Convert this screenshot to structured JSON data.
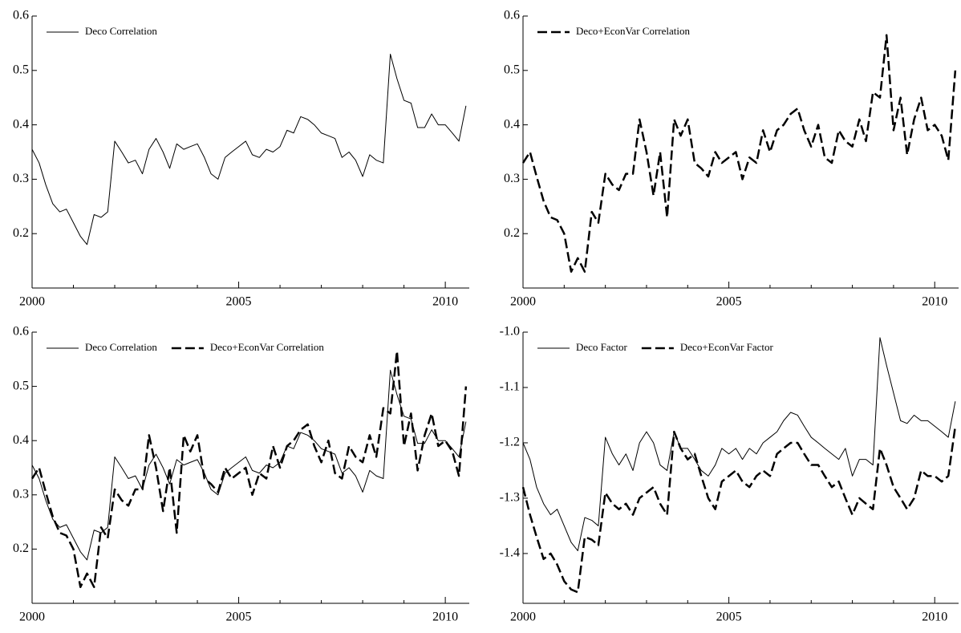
{
  "chart_data": [
    {
      "type": "line",
      "legend": "upper left",
      "xlim": [
        2000,
        2010.58
      ],
      "ylim": [
        0.1,
        0.6
      ],
      "xticks": [
        2000,
        2005,
        2010
      ],
      "xminorticks": [
        2001,
        2002,
        2003,
        2004,
        2006,
        2007,
        2008,
        2009
      ],
      "yticks": [
        0.2,
        0.3,
        0.4,
        0.5,
        0.6
      ],
      "x": [
        2000,
        2000.17,
        2000.33,
        2000.5,
        2000.67,
        2000.83,
        2001,
        2001.17,
        2001.33,
        2001.5,
        2001.67,
        2001.83,
        2002,
        2002.17,
        2002.33,
        2002.5,
        2002.67,
        2002.83,
        2003,
        2003.17,
        2003.33,
        2003.5,
        2003.67,
        2003.83,
        2004,
        2004.17,
        2004.33,
        2004.5,
        2004.67,
        2004.83,
        2005,
        2005.17,
        2005.33,
        2005.5,
        2005.67,
        2005.83,
        2006,
        2006.17,
        2006.33,
        2006.5,
        2006.67,
        2006.83,
        2007,
        2007.17,
        2007.33,
        2007.5,
        2007.67,
        2007.83,
        2008,
        2008.17,
        2008.33,
        2008.5,
        2008.67,
        2008.83,
        2009,
        2009.17,
        2009.33,
        2009.5,
        2009.67,
        2009.83,
        2010,
        2010.17,
        2010.33,
        2010.5
      ],
      "series": [
        {
          "name": "Deco Correlation",
          "color": "#000000",
          "dashed": false,
          "values": [
            0.355,
            0.33,
            0.29,
            0.255,
            0.24,
            0.245,
            0.22,
            0.195,
            0.18,
            0.235,
            0.23,
            0.24,
            0.37,
            0.35,
            0.33,
            0.335,
            0.31,
            0.355,
            0.375,
            0.35,
            0.32,
            0.365,
            0.355,
            0.36,
            0.365,
            0.34,
            0.31,
            0.3,
            0.34,
            0.35,
            0.36,
            0.37,
            0.345,
            0.34,
            0.355,
            0.35,
            0.36,
            0.39,
            0.385,
            0.415,
            0.41,
            0.4,
            0.385,
            0.38,
            0.375,
            0.34,
            0.35,
            0.335,
            0.305,
            0.345,
            0.335,
            0.33,
            0.53,
            0.485,
            0.445,
            0.44,
            0.395,
            0.395,
            0.42,
            0.4,
            0.4,
            0.385,
            0.37,
            0.435
          ]
        }
      ]
    },
    {
      "type": "line",
      "legend": "upper left",
      "xlim": [
        2000,
        2010.58
      ],
      "ylim": [
        0.1,
        0.6
      ],
      "xticks": [
        2000,
        2005,
        2010
      ],
      "xminorticks": [
        2001,
        2002,
        2003,
        2004,
        2006,
        2007,
        2008,
        2009
      ],
      "yticks": [
        0.2,
        0.3,
        0.4,
        0.5,
        0.6
      ],
      "x": [
        2000,
        2000.17,
        2000.33,
        2000.5,
        2000.67,
        2000.83,
        2001,
        2001.17,
        2001.33,
        2001.5,
        2001.67,
        2001.83,
        2002,
        2002.17,
        2002.33,
        2002.5,
        2002.67,
        2002.83,
        2003,
        2003.17,
        2003.33,
        2003.5,
        2003.67,
        2003.83,
        2004,
        2004.17,
        2004.33,
        2004.5,
        2004.67,
        2004.83,
        2005,
        2005.17,
        2005.33,
        2005.5,
        2005.67,
        2005.83,
        2006,
        2006.17,
        2006.33,
        2006.5,
        2006.67,
        2006.83,
        2007,
        2007.17,
        2007.33,
        2007.5,
        2007.67,
        2007.83,
        2008,
        2008.17,
        2008.33,
        2008.5,
        2008.67,
        2008.83,
        2009,
        2009.17,
        2009.33,
        2009.5,
        2009.67,
        2009.83,
        2010,
        2010.17,
        2010.33,
        2010.5
      ],
      "series": [
        {
          "name": "Deco+EconVar Correlation",
          "color": "#000000",
          "dashed": true,
          "values": [
            0.33,
            0.35,
            0.305,
            0.26,
            0.23,
            0.225,
            0.2,
            0.13,
            0.155,
            0.13,
            0.24,
            0.22,
            0.31,
            0.29,
            0.28,
            0.31,
            0.31,
            0.41,
            0.35,
            0.27,
            0.35,
            0.23,
            0.41,
            0.38,
            0.41,
            0.33,
            0.32,
            0.305,
            0.35,
            0.33,
            0.34,
            0.35,
            0.3,
            0.34,
            0.33,
            0.39,
            0.35,
            0.39,
            0.4,
            0.42,
            0.43,
            0.39,
            0.36,
            0.4,
            0.34,
            0.33,
            0.39,
            0.37,
            0.36,
            0.41,
            0.37,
            0.46,
            0.45,
            0.565,
            0.39,
            0.45,
            0.345,
            0.41,
            0.45,
            0.39,
            0.4,
            0.38,
            0.335,
            0.5
          ]
        }
      ]
    },
    {
      "type": "line",
      "legend": "upper left",
      "xlim": [
        2000,
        2010.58
      ],
      "ylim": [
        0.1,
        0.6
      ],
      "xticks": [
        2000,
        2005,
        2010
      ],
      "xminorticks": [
        2001,
        2002,
        2003,
        2004,
        2006,
        2007,
        2008,
        2009
      ],
      "yticks": [
        0.2,
        0.3,
        0.4,
        0.5,
        0.6
      ],
      "x": [
        2000,
        2000.17,
        2000.33,
        2000.5,
        2000.67,
        2000.83,
        2001,
        2001.17,
        2001.33,
        2001.5,
        2001.67,
        2001.83,
        2002,
        2002.17,
        2002.33,
        2002.5,
        2002.67,
        2002.83,
        2003,
        2003.17,
        2003.33,
        2003.5,
        2003.67,
        2003.83,
        2004,
        2004.17,
        2004.33,
        2004.5,
        2004.67,
        2004.83,
        2005,
        2005.17,
        2005.33,
        2005.5,
        2005.67,
        2005.83,
        2006,
        2006.17,
        2006.33,
        2006.5,
        2006.67,
        2006.83,
        2007,
        2007.17,
        2007.33,
        2007.5,
        2007.67,
        2007.83,
        2008,
        2008.17,
        2008.33,
        2008.5,
        2008.67,
        2008.83,
        2009,
        2009.17,
        2009.33,
        2009.5,
        2009.67,
        2009.83,
        2010,
        2010.17,
        2010.33,
        2010.5
      ],
      "series": [
        {
          "name": "Deco Correlation",
          "color": "#000000",
          "dashed": false,
          "values": [
            0.355,
            0.33,
            0.29,
            0.255,
            0.24,
            0.245,
            0.22,
            0.195,
            0.18,
            0.235,
            0.23,
            0.24,
            0.37,
            0.35,
            0.33,
            0.335,
            0.31,
            0.355,
            0.375,
            0.35,
            0.32,
            0.365,
            0.355,
            0.36,
            0.365,
            0.34,
            0.31,
            0.3,
            0.34,
            0.35,
            0.36,
            0.37,
            0.345,
            0.34,
            0.355,
            0.35,
            0.36,
            0.39,
            0.385,
            0.415,
            0.41,
            0.4,
            0.385,
            0.38,
            0.375,
            0.34,
            0.35,
            0.335,
            0.305,
            0.345,
            0.335,
            0.33,
            0.53,
            0.485,
            0.445,
            0.44,
            0.395,
            0.395,
            0.42,
            0.4,
            0.4,
            0.385,
            0.37,
            0.435
          ]
        },
        {
          "name": "Deco+EconVar Correlation",
          "color": "#000000",
          "dashed": true,
          "values": [
            0.33,
            0.35,
            0.305,
            0.26,
            0.23,
            0.225,
            0.2,
            0.13,
            0.155,
            0.13,
            0.24,
            0.22,
            0.31,
            0.29,
            0.28,
            0.31,
            0.31,
            0.41,
            0.35,
            0.27,
            0.35,
            0.23,
            0.41,
            0.38,
            0.41,
            0.33,
            0.32,
            0.305,
            0.35,
            0.33,
            0.34,
            0.35,
            0.3,
            0.34,
            0.33,
            0.39,
            0.35,
            0.39,
            0.4,
            0.42,
            0.43,
            0.39,
            0.36,
            0.4,
            0.34,
            0.33,
            0.39,
            0.37,
            0.36,
            0.41,
            0.37,
            0.46,
            0.45,
            0.565,
            0.39,
            0.45,
            0.345,
            0.41,
            0.45,
            0.39,
            0.4,
            0.38,
            0.335,
            0.5
          ]
        }
      ]
    },
    {
      "type": "line",
      "legend": "upper left",
      "xlim": [
        2000,
        2010.58
      ],
      "ylim": [
        -1.49,
        -1.0
      ],
      "xticks": [
        2000,
        2005,
        2010
      ],
      "xminorticks": [
        2001,
        2002,
        2003,
        2004,
        2006,
        2007,
        2008,
        2009
      ],
      "yticks": [
        -1.4,
        -1.3,
        -1.2,
        -1.1,
        {
          "value": -1,
          "label": "-1.0"
        }
      ],
      "x": [
        2000,
        2000.17,
        2000.33,
        2000.5,
        2000.67,
        2000.83,
        2001,
        2001.17,
        2001.33,
        2001.5,
        2001.67,
        2001.83,
        2002,
        2002.17,
        2002.33,
        2002.5,
        2002.67,
        2002.83,
        2003,
        2003.17,
        2003.33,
        2003.5,
        2003.67,
        2003.83,
        2004,
        2004.17,
        2004.33,
        2004.5,
        2004.67,
        2004.83,
        2005,
        2005.17,
        2005.33,
        2005.5,
        2005.67,
        2005.83,
        2006,
        2006.17,
        2006.33,
        2006.5,
        2006.67,
        2006.83,
        2007,
        2007.17,
        2007.33,
        2007.5,
        2007.67,
        2007.83,
        2008,
        2008.17,
        2008.33,
        2008.5,
        2008.67,
        2008.83,
        2009,
        2009.17,
        2009.33,
        2009.5,
        2009.67,
        2009.83,
        2010,
        2010.17,
        2010.33,
        2010.5
      ],
      "series": [
        {
          "name": "Deco Factor",
          "color": "#000000",
          "dashed": false,
          "values": [
            -1.2,
            -1.23,
            -1.28,
            -1.31,
            -1.33,
            -1.32,
            -1.35,
            -1.38,
            -1.395,
            -1.335,
            -1.34,
            -1.35,
            -1.19,
            -1.22,
            -1.24,
            -1.22,
            -1.25,
            -1.2,
            -1.18,
            -1.2,
            -1.24,
            -1.25,
            -1.18,
            -1.21,
            -1.21,
            -1.23,
            -1.25,
            -1.26,
            -1.24,
            -1.21,
            -1.22,
            -1.21,
            -1.23,
            -1.21,
            -1.22,
            -1.2,
            -1.19,
            -1.18,
            -1.16,
            -1.145,
            -1.15,
            -1.17,
            -1.19,
            -1.2,
            -1.21,
            -1.22,
            -1.23,
            -1.21,
            -1.26,
            -1.23,
            -1.23,
            -1.24,
            -1.01,
            -1.06,
            -1.11,
            -1.16,
            -1.165,
            -1.15,
            -1.16,
            -1.16,
            -1.17,
            -1.18,
            -1.19,
            -1.125
          ]
        },
        {
          "name": "Deco+EconVar Factor",
          "color": "#000000",
          "dashed": true,
          "values": [
            -1.28,
            -1.33,
            -1.37,
            -1.41,
            -1.4,
            -1.42,
            -1.45,
            -1.465,
            -1.47,
            -1.37,
            -1.375,
            -1.385,
            -1.29,
            -1.31,
            -1.32,
            -1.31,
            -1.33,
            -1.3,
            -1.29,
            -1.28,
            -1.31,
            -1.33,
            -1.18,
            -1.21,
            -1.23,
            -1.22,
            -1.26,
            -1.3,
            -1.32,
            -1.27,
            -1.26,
            -1.25,
            -1.27,
            -1.28,
            -1.26,
            -1.25,
            -1.26,
            -1.22,
            -1.21,
            -1.2,
            -1.2,
            -1.22,
            -1.24,
            -1.24,
            -1.26,
            -1.28,
            -1.27,
            -1.3,
            -1.33,
            -1.3,
            -1.31,
            -1.32,
            -1.21,
            -1.24,
            -1.28,
            -1.3,
            -1.32,
            -1.3,
            -1.25,
            -1.26,
            -1.26,
            -1.27,
            -1.26,
            -1.17
          ]
        }
      ]
    }
  ]
}
